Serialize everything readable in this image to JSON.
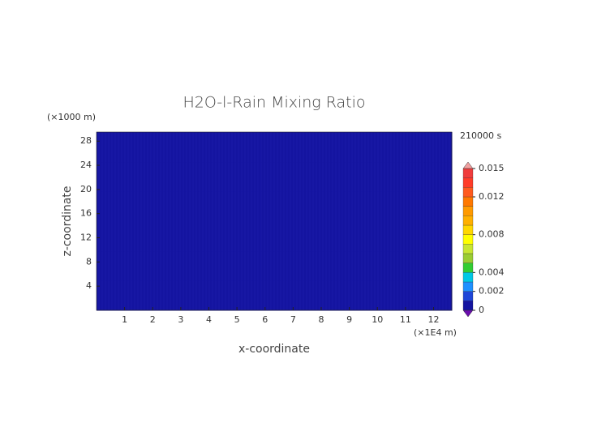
{
  "chart_data": {
    "type": "heatmap",
    "title": "H2O-l-Rain Mixing Ratio",
    "x_label": "x-coordinate",
    "y_label": "z-coordinate",
    "x_unit": "(×1E4 m)",
    "y_unit": "(×1000 m)",
    "time_label": "210000 s",
    "xlim": [
      0,
      12.65
    ],
    "ylim": [
      0,
      29.5
    ],
    "xticks": [
      1,
      2,
      3,
      4,
      5,
      6,
      7,
      8,
      9,
      10,
      11,
      12
    ],
    "yticks": [
      4,
      8,
      12,
      16,
      20,
      24,
      28
    ],
    "z": [
      [
        0,
        0,
        0,
        0,
        0,
        0,
        0,
        0,
        0,
        0,
        0,
        0,
        0
      ],
      [
        0.0002,
        0.0002,
        0.0002,
        0.0002,
        0.0002,
        0.0002,
        0.0002,
        0.0002,
        0.0002,
        0.0002,
        0.0002,
        0.0002,
        0.0002
      ],
      [
        0,
        0,
        0,
        0,
        0,
        0,
        0,
        0,
        0,
        0,
        0,
        0,
        0
      ],
      [
        0,
        0,
        0,
        0,
        0,
        0,
        0,
        0,
        0,
        0,
        0,
        0,
        0
      ],
      [
        0,
        0,
        0,
        0,
        0,
        0,
        0,
        0,
        0,
        0,
        0,
        0,
        0
      ],
      [
        0,
        0,
        0,
        0,
        0,
        0,
        0,
        0,
        0,
        0,
        0,
        0,
        0
      ]
    ],
    "colorbar": {
      "levels": [
        0,
        0.001,
        0.002,
        0.003,
        0.004,
        0.005,
        0.006,
        0.007,
        0.008,
        0.009,
        0.01,
        0.011,
        0.012,
        0.013,
        0.014,
        0.015
      ],
      "colors": [
        "#1414a0",
        "#1e46d8",
        "#1e90ff",
        "#00c8e6",
        "#32cd32",
        "#9acd32",
        "#c8e632",
        "#ffff00",
        "#ffd700",
        "#ffb000",
        "#ff9a00",
        "#ff7800",
        "#ff5a1e",
        "#ff3c28",
        "#f03c3c"
      ],
      "under_color": "#6a0dad",
      "over_color": "#f0a0a0",
      "ticks": [
        0,
        0.002,
        0.004,
        0.008,
        0.012,
        0.015
      ]
    }
  }
}
